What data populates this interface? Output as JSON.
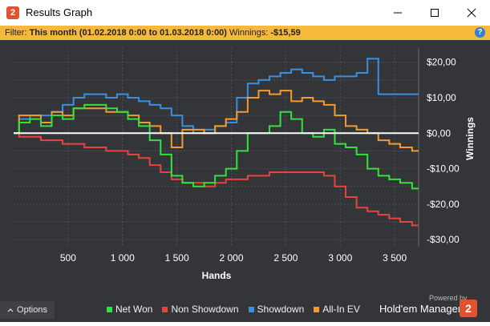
{
  "window": {
    "title": "Results Graph",
    "icon_glyph": "2"
  },
  "filter": {
    "label": "Filter:",
    "period": "This month (01.02.2018 0:00 to 01.03.2018 0:00)",
    "winnings_label": "Winnings:",
    "winnings_value": "-$15,59"
  },
  "footer": {
    "options_label": "Options",
    "powered_by": "Powered by",
    "brand_name": "Hold'em Manager",
    "brand_glyph": "2"
  },
  "colors": {
    "net_won": "#33e23c",
    "non_showdown": "#e8433f",
    "showdown": "#3a8fe0",
    "all_in_ev": "#f59a2e",
    "zero_line": "#ffffff"
  },
  "chart_data": {
    "type": "line",
    "xlabel": "Hands",
    "ylabel": "Winnings",
    "xlim": [
      0,
      3720
    ],
    "ylim": [
      -32,
      24
    ],
    "x_ticks": [
      500,
      1000,
      1500,
      2000,
      2500,
      3000,
      3500
    ],
    "x_tick_labels": [
      "500",
      "1 000",
      "1 500",
      "2 000",
      "2 500",
      "3 000",
      "3 500"
    ],
    "y_ticks": [
      20,
      10,
      0,
      -10,
      -20,
      -30
    ],
    "y_tick_labels": [
      "$20,00",
      "$10,00",
      "$0,00",
      "-$10,00",
      "-$20,00",
      "-$30,00"
    ],
    "grid": true,
    "legend_position": "bottom",
    "series": [
      {
        "name": "Net Won",
        "x": [
          0,
          100,
          200,
          300,
          400,
          500,
          600,
          700,
          800,
          900,
          1000,
          1100,
          1200,
          1300,
          1400,
          1500,
          1600,
          1700,
          1800,
          1900,
          2000,
          2100,
          2200,
          2300,
          2400,
          2500,
          2600,
          2700,
          2800,
          2900,
          3000,
          3100,
          3200,
          3300,
          3400,
          3500,
          3600,
          3720
        ],
        "y": [
          0,
          3,
          4,
          2,
          5,
          4,
          7,
          8,
          8,
          7,
          6,
          4,
          2,
          -2,
          -6,
          -12,
          -14,
          -15,
          -14,
          -12,
          -10,
          -5,
          0,
          0,
          2,
          6,
          4,
          0,
          -1,
          1,
          -3,
          -4,
          -6,
          -10,
          -12,
          -13,
          -14,
          -15.6
        ]
      },
      {
        "name": "Non Showdown",
        "x": [
          0,
          100,
          200,
          300,
          400,
          500,
          600,
          700,
          800,
          900,
          1000,
          1100,
          1200,
          1300,
          1400,
          1500,
          1600,
          1700,
          1800,
          1900,
          2000,
          2100,
          2200,
          2300,
          2400,
          2500,
          2600,
          2700,
          2800,
          2900,
          3000,
          3100,
          3200,
          3300,
          3400,
          3500,
          3600,
          3720
        ],
        "y": [
          0,
          -1,
          -1,
          -2,
          -2,
          -3,
          -3,
          -4,
          -4,
          -5,
          -5,
          -6,
          -7,
          -9,
          -11,
          -13,
          -14,
          -14,
          -15,
          -14,
          -13,
          -13,
          -12,
          -12,
          -11,
          -11,
          -11,
          -11,
          -11,
          -12,
          -15,
          -18,
          -21,
          -22,
          -23,
          -24,
          -25,
          -26
        ]
      },
      {
        "name": "Showdown",
        "x": [
          0,
          100,
          200,
          300,
          400,
          500,
          600,
          700,
          800,
          900,
          1000,
          1100,
          1200,
          1300,
          1400,
          1500,
          1600,
          1700,
          1800,
          1900,
          2000,
          2100,
          2200,
          2300,
          2400,
          2500,
          2600,
          2700,
          2800,
          2900,
          3000,
          3100,
          3200,
          3300,
          3400,
          3500,
          3600,
          3720
        ],
        "y": [
          0,
          4,
          5,
          5,
          6,
          8,
          10,
          11,
          11,
          10,
          11,
          10,
          9,
          8,
          7,
          5,
          2,
          0,
          1,
          2,
          3,
          10,
          14,
          15,
          16,
          17,
          18,
          17,
          16,
          15,
          16,
          16,
          17,
          21,
          11,
          11,
          11,
          11
        ]
      },
      {
        "name": "All-In EV",
        "x": [
          0,
          100,
          200,
          300,
          400,
          500,
          600,
          700,
          800,
          900,
          1000,
          1100,
          1200,
          1300,
          1400,
          1500,
          1600,
          1700,
          1800,
          1900,
          2000,
          2100,
          2200,
          2300,
          2400,
          2500,
          2600,
          2700,
          2800,
          2900,
          3000,
          3100,
          3200,
          3300,
          3400,
          3500,
          3600,
          3720
        ],
        "y": [
          0,
          5,
          5,
          3,
          6,
          5,
          7,
          7,
          7,
          6,
          6,
          5,
          3,
          2,
          0,
          -4,
          1,
          1,
          0,
          2,
          4,
          6,
          10,
          12,
          11,
          12,
          9,
          10,
          9,
          8,
          5,
          2,
          1,
          0,
          -2,
          -3,
          -4,
          -5
        ]
      }
    ]
  }
}
